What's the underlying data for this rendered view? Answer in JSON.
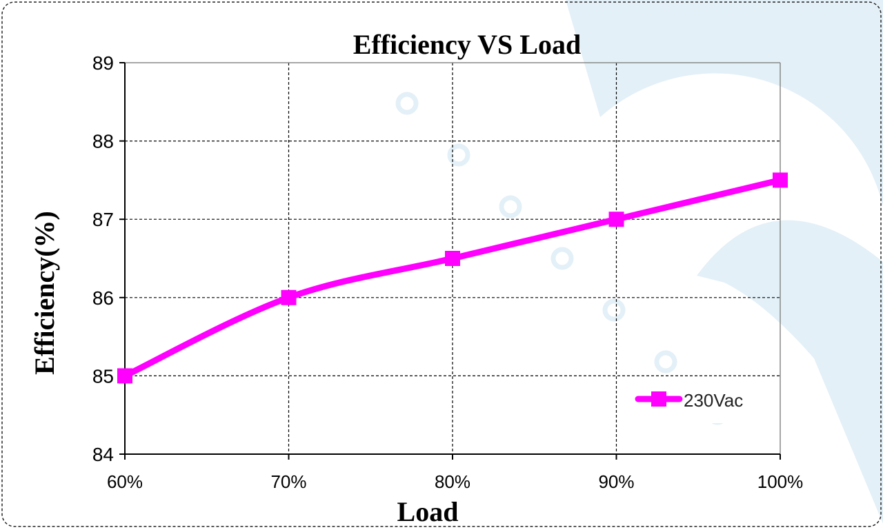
{
  "chart_data": {
    "type": "line",
    "title": "Efficiency VS  Load",
    "xlabel": "Load",
    "ylabel": "Efficiency(%)",
    "categories": [
      "60%",
      "70%",
      "80%",
      "90%",
      "100%"
    ],
    "ylim": [
      84,
      89
    ],
    "yticks": [
      84,
      85,
      86,
      87,
      88,
      89
    ],
    "grid": true,
    "legend_position": "bottom-right",
    "series": [
      {
        "name": "230Vac",
        "color": "#ff00ff",
        "marker": "square",
        "values": [
          85.0,
          86.0,
          86.5,
          87.0,
          87.5
        ]
      }
    ]
  },
  "watermark": {
    "color": "#e3f0f7"
  }
}
